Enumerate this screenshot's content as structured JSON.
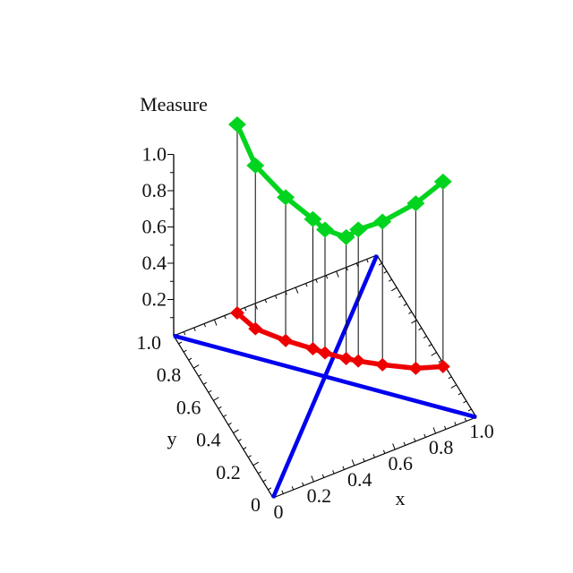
{
  "chart_data": {
    "type": "line",
    "projection": "3d",
    "title": "",
    "z_axis": {
      "label": "Measure",
      "tick_labels": [
        "0.2",
        "0.4",
        "0.6",
        "0.8",
        "1.0"
      ],
      "tick_values": [
        0.2,
        0.4,
        0.6,
        0.8,
        1.0
      ],
      "range": [
        0,
        1
      ],
      "minor_tick_step": 0.1
    },
    "x_axis": {
      "label": "x",
      "tick_labels": [
        "0",
        "0.2",
        "0.4",
        "0.6",
        "0.8",
        "1.0"
      ],
      "tick_values": [
        0,
        0.2,
        0.4,
        0.6,
        0.8,
        1.0
      ],
      "range": [
        0,
        1
      ],
      "minor_tick_step": 0.05
    },
    "y_axis": {
      "label": "y",
      "tick_labels": [
        "0",
        "0.2",
        "0.4",
        "0.6",
        "0.8",
        "1.0"
      ],
      "tick_values": [
        0,
        0.2,
        0.4,
        0.6,
        0.8,
        1.0
      ],
      "range": [
        0,
        1
      ],
      "minor_tick_step": 0.05
    },
    "path_on_base_plane": "y = 1 - x",
    "x": [
      0.21,
      0.27,
      0.37,
      0.46,
      0.5,
      0.57,
      0.61,
      0.69,
      0.8,
      0.89
    ],
    "series": [
      {
        "name": "green-series",
        "color": "#00D41E",
        "marker": "diamond",
        "line_width": 5.5,
        "z_values": [
          1.26,
          1.06,
          0.93,
          0.85,
          0.81,
          0.8,
          0.86,
          0.94,
          1.09,
          1.25
        ]
      },
      {
        "name": "red-series",
        "color": "#EE0000",
        "marker": "diamond",
        "line_width": 5.5,
        "z_values": [
          0.22,
          0.16,
          0.14,
          0.135,
          0.13,
          0.13,
          0.135,
          0.15,
          0.18,
          0.23
        ]
      }
    ],
    "drop_lines": {
      "between": [
        "green-series",
        "red-series"
      ],
      "color": "#1a1a1a",
      "width": 1.1
    },
    "base_diagonals": {
      "color": "#0000EE",
      "width": 4.6,
      "lines": [
        {
          "from": [
            0,
            0
          ],
          "to": [
            1,
            1
          ]
        },
        {
          "from": [
            0,
            1
          ],
          "to": [
            1,
            0
          ]
        }
      ]
    },
    "axis_color": "#000000"
  }
}
